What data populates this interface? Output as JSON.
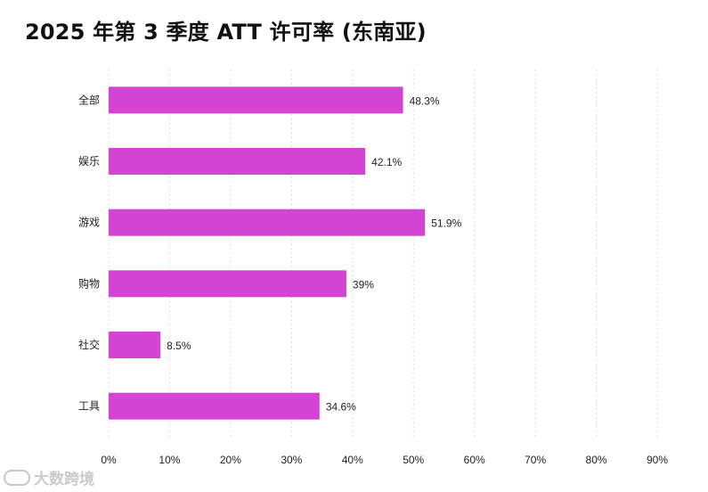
{
  "title": "2025 年第 3 季度 ATT 许可率 (东南亚)",
  "watermark": "大数跨境",
  "colors": {
    "bar": "#d444d4",
    "grid": "#dcdcdc",
    "text": "#222222"
  },
  "chart_data": {
    "type": "bar",
    "orientation": "horizontal",
    "title": "2025 年第 3 季度 ATT 许可率 (东南亚)",
    "categories": [
      "全部",
      "娱乐",
      "游戏",
      "购物",
      "社交",
      "工具"
    ],
    "values": [
      48.3,
      42.1,
      51.9,
      39,
      8.5,
      34.6
    ],
    "value_labels": [
      "48.3%",
      "42.1%",
      "51.9%",
      "39%",
      "8.5%",
      "34.6%"
    ],
    "xlim": [
      0,
      90
    ],
    "x_ticks": [
      0,
      10,
      20,
      30,
      40,
      50,
      60,
      70,
      80,
      90
    ],
    "x_tick_labels": [
      "0%",
      "10%",
      "20%",
      "30%",
      "40%",
      "50%",
      "60%",
      "70%",
      "80%",
      "90%"
    ],
    "grid": "vertical-dashed",
    "legend": "none"
  }
}
